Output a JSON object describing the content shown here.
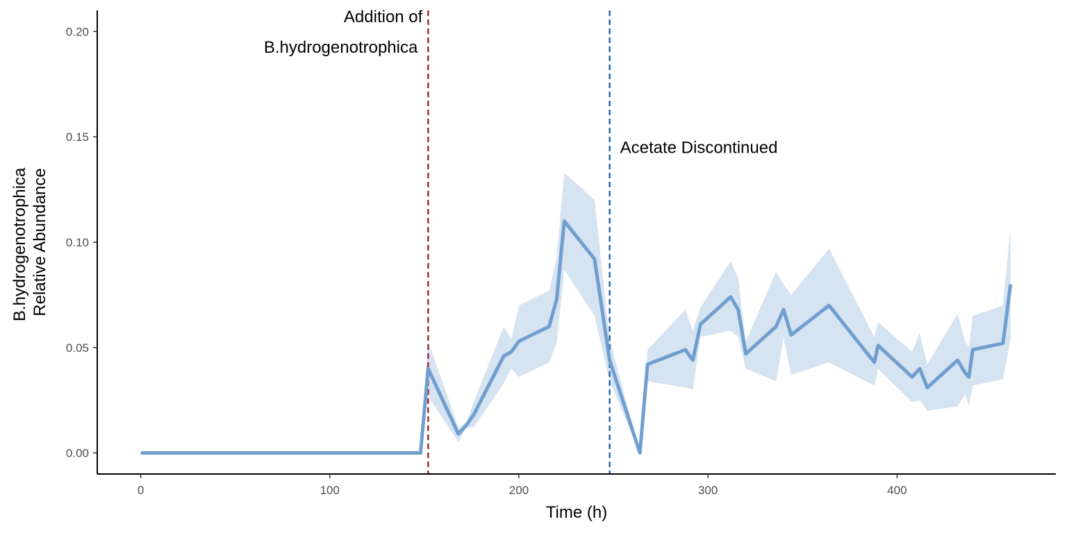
{
  "chart_data": {
    "type": "line",
    "xlabel": "Time (h)",
    "ylabel_lines": [
      "B.hydrogenotrophica",
      "Relative Abundance"
    ],
    "xlim": [
      -23,
      484
    ],
    "ylim": [
      -0.01,
      0.21
    ],
    "x_ticks": [
      0,
      100,
      200,
      300,
      400
    ],
    "x_tick_labels": [
      "0",
      "100",
      "200",
      "300",
      "400"
    ],
    "y_ticks": [
      0,
      0.05,
      0.1,
      0.15,
      0.2
    ],
    "y_tick_labels": [
      "0.00",
      "0.05",
      "0.10",
      "0.15",
      "0.20"
    ],
    "grid": false,
    "legend": "none",
    "colors": {
      "line": "#6f9ecf",
      "ribbon": "#d6e3f1",
      "addition_line": "#a3212a",
      "acetate_line": "#1f63a8",
      "axis": "#000000"
    },
    "series": [
      {
        "x": [
          0,
          148,
          152,
          168,
          172,
          176,
          192,
          196,
          200,
          216,
          220,
          224,
          240,
          248,
          264,
          268,
          288,
          292,
          296,
          312,
          316,
          320,
          336,
          340,
          344,
          364,
          388,
          390,
          408,
          412,
          416,
          432,
          436,
          438,
          440,
          456,
          460
        ],
        "y": [
          0,
          0,
          0.04,
          0.009,
          0.013,
          0.018,
          0.046,
          0.048,
          0.053,
          0.06,
          0.073,
          0.11,
          0.092,
          0.044,
          0,
          0.042,
          0.049,
          0.044,
          0.061,
          0.074,
          0.068,
          0.047,
          0.06,
          0.068,
          0.056,
          0.07,
          0.043,
          0.051,
          0.036,
          0.04,
          0.031,
          0.044,
          0.038,
          0.036,
          0.049,
          0.052,
          0.08
        ],
        "lower": [
          0,
          0,
          0.027,
          0.005,
          0.012,
          0.012,
          0.033,
          0.04,
          0.036,
          0.043,
          0.052,
          0.087,
          0.065,
          0.034,
          0,
          0.034,
          0.031,
          0.03,
          0.055,
          0.058,
          0.055,
          0.04,
          0.034,
          0.055,
          0.037,
          0.043,
          0.032,
          0.04,
          0.024,
          0.025,
          0.02,
          0.022,
          0.028,
          0.022,
          0.032,
          0.035,
          0.054
        ],
        "upper": [
          0,
          0,
          0.053,
          0.012,
          0.014,
          0.024,
          0.06,
          0.054,
          0.07,
          0.077,
          0.093,
          0.133,
          0.12,
          0.054,
          0,
          0.049,
          0.068,
          0.058,
          0.069,
          0.091,
          0.083,
          0.053,
          0.086,
          0.08,
          0.075,
          0.097,
          0.055,
          0.062,
          0.048,
          0.057,
          0.042,
          0.066,
          0.053,
          0.05,
          0.065,
          0.07,
          0.107
        ]
      }
    ],
    "vlines": [
      {
        "x": 152,
        "style": "dashed",
        "color_key": "addition_line"
      },
      {
        "x": 248,
        "style": "dashed",
        "color_key": "acetate_line"
      }
    ],
    "annotations": [
      {
        "lines": [
          "Addition of",
          "B.hydrogenotrophica"
        ],
        "x": 152,
        "align": "left-of-line",
        "y_top": 0.21
      },
      {
        "lines": [
          "Acetate Discontinued"
        ],
        "x": 248,
        "align": "right-of-line",
        "y_top": 0.148
      }
    ]
  }
}
